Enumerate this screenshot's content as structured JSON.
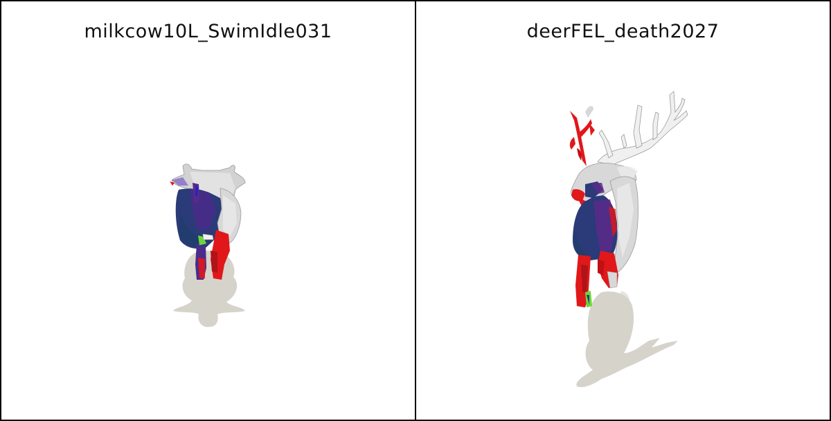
{
  "panels": [
    {
      "title": "milkcow10L_SwimIdle031"
    },
    {
      "title": "deerFEL_death2027"
    }
  ],
  "colors": {
    "shadow": "#d6d3cb",
    "mesh_gray": "#c9c9c9",
    "mesh_white": "#f2f2f2",
    "navy": "#2b3a78",
    "purple": "#5a2a8a",
    "red": "#e0181a",
    "green": "#6ad83a"
  }
}
